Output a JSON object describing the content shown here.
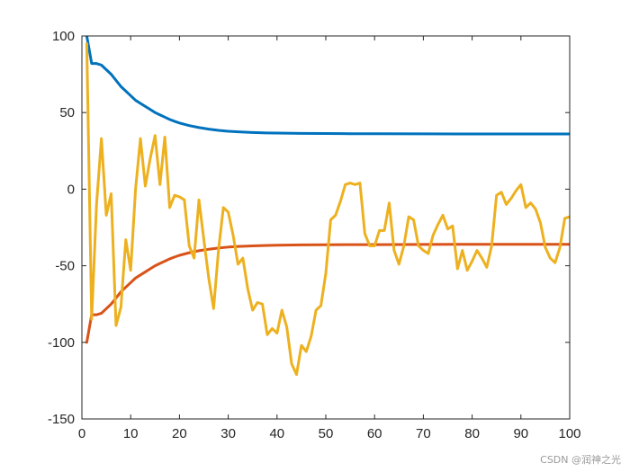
{
  "watermark": "CSDN @润神之光",
  "chart_data": {
    "type": "line",
    "title": "",
    "xlabel": "",
    "ylabel": "",
    "xlim": [
      0,
      100
    ],
    "ylim": [
      -150,
      100
    ],
    "xticks": [
      0,
      10,
      20,
      30,
      40,
      50,
      60,
      70,
      80,
      90,
      100
    ],
    "yticks": [
      -150,
      -100,
      -50,
      0,
      50,
      100
    ],
    "grid": false,
    "legend": "none",
    "series": [
      {
        "color": "#0072BD",
        "x": [
          1,
          2,
          3,
          4,
          5,
          6,
          7,
          8,
          9,
          10,
          11,
          12,
          13,
          14,
          15,
          16,
          17,
          18,
          19,
          20,
          22,
          24,
          26,
          28,
          30,
          32,
          35,
          38,
          40,
          45,
          50,
          55,
          60,
          70,
          80,
          90,
          100
        ],
        "y": [
          100,
          82,
          82,
          81,
          78,
          75,
          71,
          67,
          64,
          61,
          58,
          56,
          54,
          52,
          50,
          48.5,
          47,
          45.5,
          44.3,
          43.2,
          41.5,
          40.2,
          39.2,
          38.4,
          37.8,
          37.4,
          37,
          36.7,
          36.6,
          36.4,
          36.3,
          36.2,
          36.2,
          36.1,
          36,
          36,
          36
        ]
      },
      {
        "color": "#D95319",
        "x": [
          1,
          2,
          3,
          4,
          5,
          6,
          7,
          8,
          9,
          10,
          11,
          12,
          13,
          14,
          15,
          16,
          17,
          18,
          19,
          20,
          22,
          24,
          26,
          28,
          30,
          32,
          35,
          38,
          40,
          45,
          50,
          55,
          60,
          70,
          80,
          90,
          100
        ],
        "y": [
          -100,
          -82,
          -82,
          -81,
          -78,
          -75,
          -71,
          -67,
          -64,
          -61,
          -58,
          -56,
          -54,
          -52,
          -50,
          -48.5,
          -47,
          -45.5,
          -44.3,
          -43.2,
          -41.5,
          -40.2,
          -39.2,
          -38.4,
          -37.8,
          -37.4,
          -37,
          -36.7,
          -36.6,
          -36.4,
          -36.3,
          -36.2,
          -36.2,
          -36.1,
          -36,
          -36,
          -36
        ]
      },
      {
        "color": "#EDB120",
        "x": [
          1,
          2,
          3,
          4,
          5,
          6,
          7,
          8,
          9,
          10,
          11,
          12,
          13,
          14,
          15,
          16,
          17,
          18,
          19,
          20,
          21,
          22,
          23,
          24,
          25,
          26,
          27,
          28,
          29,
          30,
          31,
          32,
          33,
          34,
          35,
          36,
          37,
          38,
          39,
          40,
          41,
          42,
          43,
          44,
          45,
          46,
          47,
          48,
          49,
          50,
          51,
          52,
          53,
          54,
          55,
          56,
          57,
          58,
          59,
          60,
          61,
          62,
          63,
          64,
          65,
          66,
          67,
          68,
          69,
          70,
          71,
          72,
          73,
          74,
          75,
          76,
          77,
          78,
          79,
          80,
          81,
          82,
          83,
          84,
          85,
          86,
          87,
          88,
          89,
          90,
          91,
          92,
          93,
          94,
          95,
          96,
          97,
          98,
          99,
          100
        ],
        "y": [
          95,
          -85,
          -10,
          33,
          -17,
          -3,
          -89,
          -77,
          -33,
          -53,
          0,
          33,
          2,
          20,
          35,
          3,
          34,
          -12,
          -4,
          -5,
          -7,
          -37,
          -45,
          -7,
          -33,
          -58,
          -78,
          -40,
          -12,
          -15,
          -30,
          -49,
          -45,
          -65,
          -79,
          -74,
          -75,
          -95,
          -91,
          -94,
          -79,
          -90,
          -114,
          -121,
          -102,
          -106,
          -96,
          -79,
          -76,
          -55,
          -20,
          -17,
          -8,
          3,
          4,
          3,
          4,
          -29,
          -37,
          -37,
          -27,
          -27,
          -9,
          -40,
          -49,
          -37,
          -18,
          -20,
          -37,
          -40,
          -42,
          -30,
          -23,
          -17,
          -26,
          -24,
          -52,
          -40,
          -53,
          -47,
          -40,
          -45,
          -51,
          -37,
          -4,
          -2,
          -10,
          -6,
          -1,
          3,
          -12,
          -9,
          -13,
          -22,
          -38,
          -45,
          -48,
          -38,
          -19,
          -18
        ]
      }
    ]
  }
}
